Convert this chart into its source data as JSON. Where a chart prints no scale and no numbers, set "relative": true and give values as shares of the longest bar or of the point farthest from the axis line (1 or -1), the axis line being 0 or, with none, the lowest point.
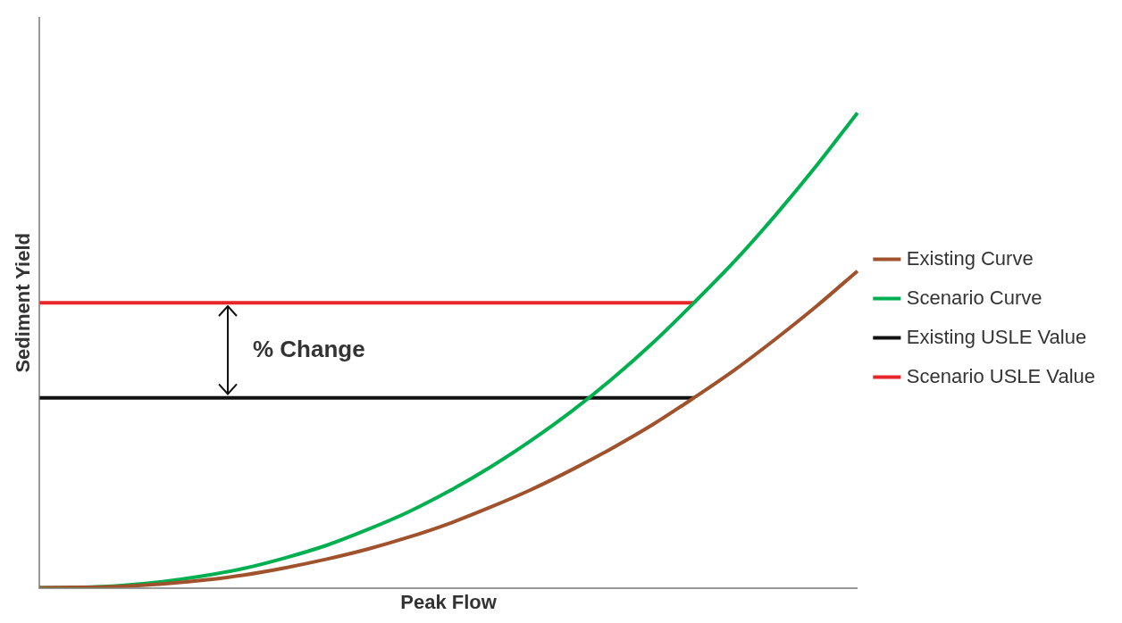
{
  "chart_data": {
    "type": "line",
    "xlabel": "Peak Flow",
    "ylabel": "Sediment Yield",
    "relative": true,
    "marker": "none",
    "legend": "right",
    "categories": [
      null,
      null,
      null,
      null,
      null,
      null,
      null,
      null,
      null,
      null,
      null,
      null,
      null,
      null,
      null,
      null,
      null,
      null,
      null,
      null,
      null
    ],
    "series": [
      {
        "name": "Existing Curve",
        "color": "#a0522d",
        "values": [
          0,
          0.001,
          0.003,
          0.008,
          0.016,
          0.027,
          0.042,
          0.06,
          0.081,
          0.106,
          0.135,
          0.169,
          0.206,
          0.248,
          0.294,
          0.344,
          0.4,
          0.459,
          0.524,
          0.593,
          0.667
        ]
      },
      {
        "name": "Scenario Curve",
        "color": "#00b050",
        "values": [
          0,
          0.001,
          0.005,
          0.013,
          0.025,
          0.041,
          0.063,
          0.089,
          0.122,
          0.159,
          0.203,
          0.253,
          0.309,
          0.371,
          0.44,
          0.516,
          0.6,
          0.688,
          0.785,
          0.889,
          1
        ]
      },
      {
        "name": "Existing USLE Value",
        "color": "#111111",
        "values": [
          0.4,
          0.4,
          0.4,
          0.4,
          0.4,
          0.4,
          0.4,
          0.4,
          0.4,
          0.4,
          0.4,
          0.4,
          0.4,
          0.4,
          0.4,
          0.4,
          0.4,
          null,
          null,
          null,
          null
        ]
      },
      {
        "name": "Scenario USLE Value",
        "color": "#e8262a",
        "values": [
          0.6,
          0.6,
          0.6,
          0.6,
          0.6,
          0.6,
          0.6,
          0.6,
          0.6,
          0.6,
          0.6,
          0.6,
          0.6,
          0.6,
          0.6,
          0.6,
          0.6,
          null,
          null,
          null,
          null
        ]
      }
    ],
    "annotations": [
      "% Change"
    ]
  }
}
